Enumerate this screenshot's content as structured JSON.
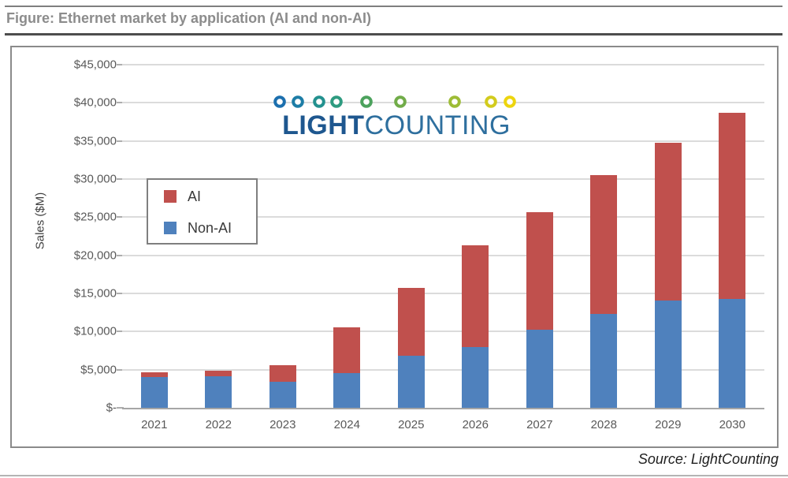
{
  "figure": {
    "title": "Figure: Ethernet market by application (AI and non-AI)",
    "source": "Source: LightCounting"
  },
  "logo": {
    "wordmark_bold": "LIGHT",
    "wordmark_regular": "COUNTING",
    "wordmark_bold_color": "#1e578f",
    "wordmark_regular_color": "#2e6f9e",
    "dots": [
      {
        "x": 17,
        "color": "#1c6fae"
      },
      {
        "x": 40,
        "color": "#1d7da6"
      },
      {
        "x": 67,
        "color": "#23918f"
      },
      {
        "x": 89,
        "color": "#2e9b80"
      },
      {
        "x": 127,
        "color": "#4ca25d"
      },
      {
        "x": 170,
        "color": "#71ac49"
      },
      {
        "x": 239,
        "color": "#9dbc35"
      },
      {
        "x": 285,
        "color": "#d2cb1d"
      },
      {
        "x": 309,
        "color": "#edd50e"
      }
    ],
    "line_gradient": [
      "#1c6fae",
      "#2e9b80",
      "#71ac49",
      "#d2cb1d",
      "#f0d708"
    ]
  },
  "legend": {
    "items": [
      {
        "label": "AI",
        "color": "#c0504d"
      },
      {
        "label": "Non-AI",
        "color": "#4f81bd"
      }
    ]
  },
  "chart_data": {
    "type": "bar",
    "stacked": true,
    "title": "Ethernet market by application (AI and non-AI)",
    "xlabel": "",
    "ylabel": "Sales ($M)",
    "categories": [
      "2021",
      "2022",
      "2023",
      "2024",
      "2025",
      "2026",
      "2027",
      "2028",
      "2029",
      "2030"
    ],
    "series": [
      {
        "name": "Non-AI",
        "color": "#4f81bd",
        "values": [
          4000,
          4100,
          3400,
          4600,
          6800,
          8000,
          10200,
          12300,
          14100,
          14300
        ]
      },
      {
        "name": "AI",
        "color": "#c0504d",
        "values": [
          650,
          800,
          2150,
          6000,
          8900,
          13300,
          15500,
          18200,
          20700,
          24400
        ]
      }
    ],
    "totals": [
      4650,
      4900,
      5550,
      10600,
      15700,
      21300,
      25700,
      30500,
      34800,
      38700
    ],
    "ylim": [
      0,
      45000
    ],
    "ytick_step": 5000,
    "ytick_labels": [
      "$-",
      "$5,000",
      "$10,000",
      "$15,000",
      "$20,000",
      "$25,000",
      "$30,000",
      "$35,000",
      "$40,000",
      "$45,000"
    ],
    "grid": true,
    "legend_position": "upper-left-inside"
  }
}
